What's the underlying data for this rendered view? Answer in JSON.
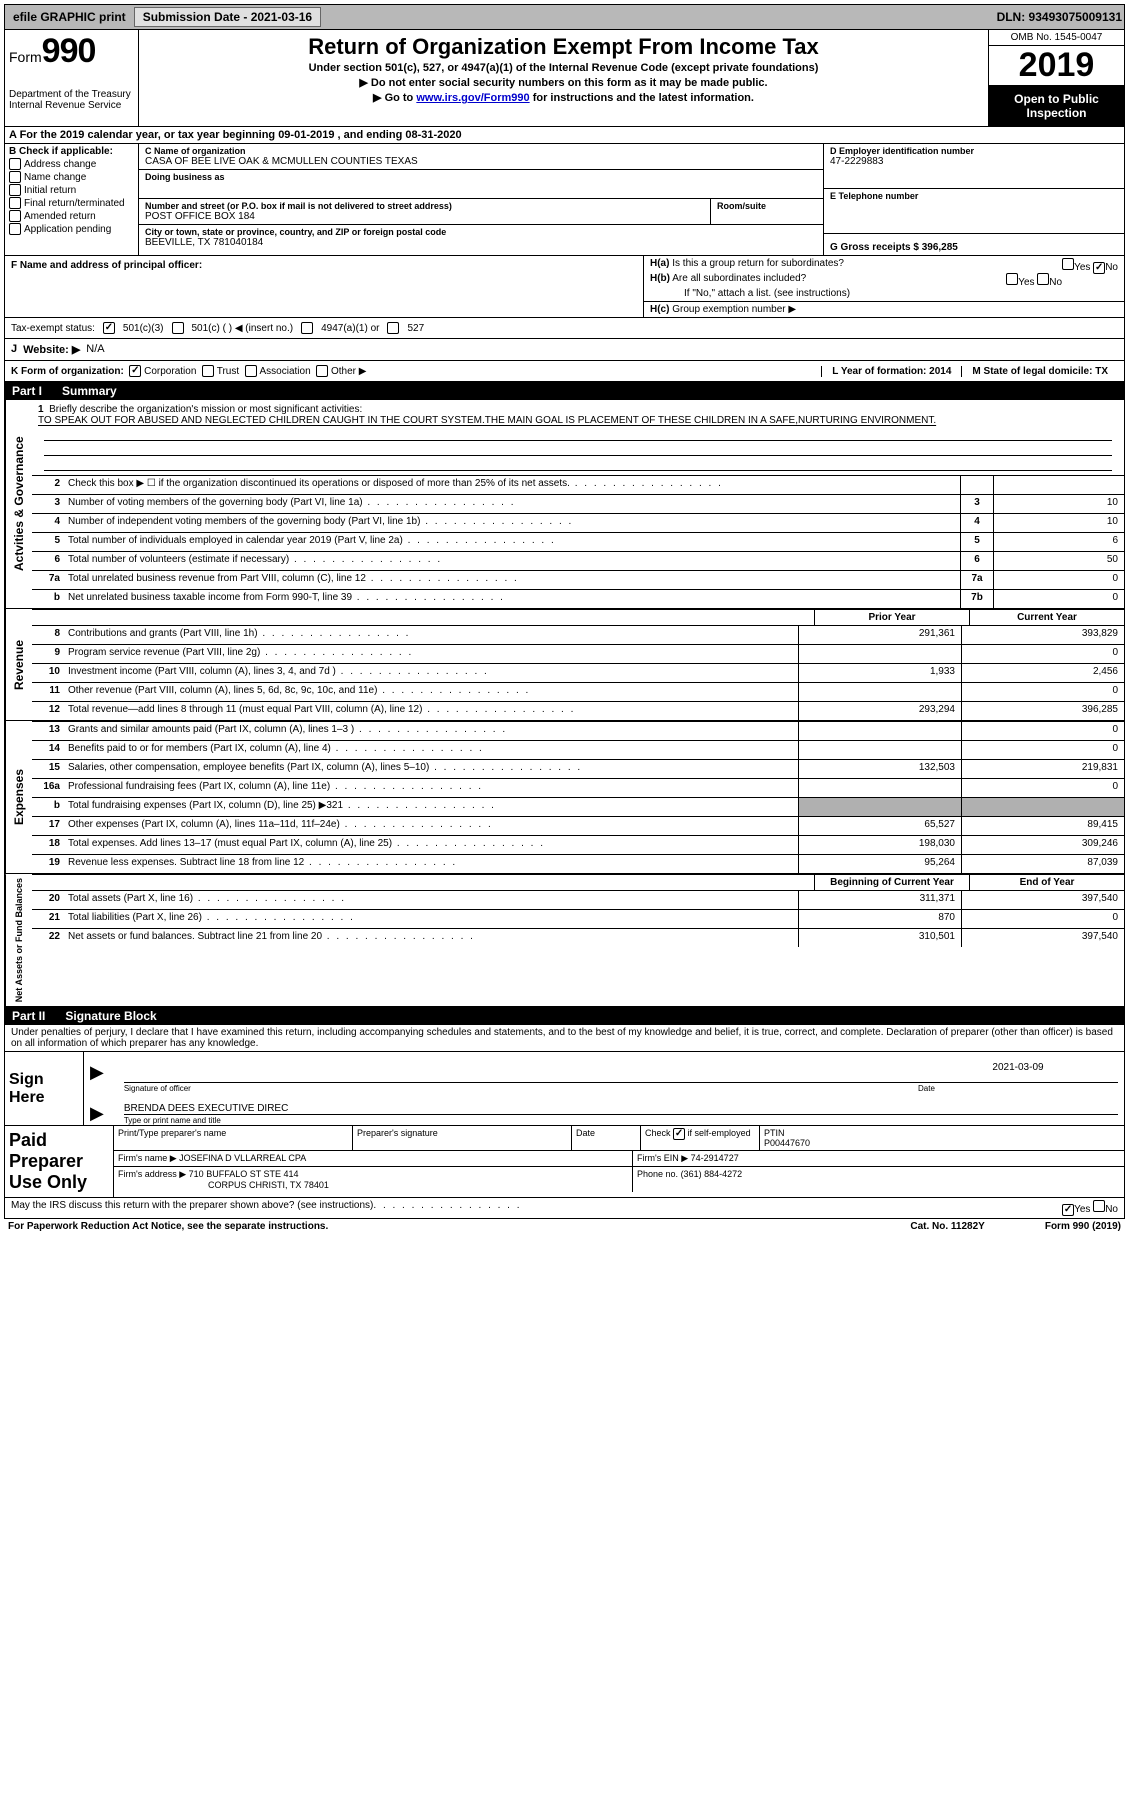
{
  "topbar": {
    "efile": "efile GRAPHIC print",
    "submission_label": "Submission Date - 2021-03-16",
    "dln_label": "DLN: 93493075009131"
  },
  "header": {
    "form_prefix": "Form",
    "form_num": "990",
    "dept": "Department of the Treasury\nInternal Revenue Service",
    "title": "Return of Organization Exempt From Income Tax",
    "sub1": "Under section 501(c), 527, or 4947(a)(1) of the Internal Revenue Code (except private foundations)",
    "sub2": "▶ Do not enter social security numbers on this form as it may be made public.",
    "sub3_prefix": "▶ Go to ",
    "sub3_link": "www.irs.gov/Form990",
    "sub3_suffix": " for instructions and the latest information.",
    "omb": "OMB No. 1545-0047",
    "year": "2019",
    "open": "Open to Public Inspection"
  },
  "row_a": "A For the 2019 calendar year, or tax year beginning 09-01-2019    , and ending 08-31-2020",
  "section_b": {
    "b_label": "B Check if applicable:",
    "opts": [
      "Address change",
      "Name change",
      "Initial return",
      "Final return/terminated",
      "Amended return",
      "Application pending"
    ],
    "c_label": "C Name of organization",
    "c_val": "CASA OF BEE LIVE OAK & MCMULLEN COUNTIES TEXAS",
    "dba_label": "Doing business as",
    "addr_label": "Number and street (or P.O. box if mail is not delivered to street address)",
    "room_label": "Room/suite",
    "addr_val": "POST OFFICE BOX 184",
    "city_label": "City or town, state or province, country, and ZIP or foreign postal code",
    "city_val": "BEEVILLE, TX  781040184",
    "d_label": "D Employer identification number",
    "d_val": "47-2229883",
    "e_label": "E Telephone number",
    "g_label": "G Gross receipts $ 396,285",
    "f_label": "F  Name and address of principal officer:",
    "ha_label": "H(a)",
    "ha_text": "Is this a group return for subordinates?",
    "hb_label": "H(b)",
    "hb_text": "Are all subordinates included?",
    "h_note": "If \"No,\" attach a list. (see instructions)",
    "hc_label": "H(c)",
    "hc_text": "Group exemption number ▶",
    "yes": "Yes",
    "no": "No"
  },
  "tax_status": {
    "label": "Tax-exempt status:",
    "o1": "501(c)(3)",
    "o2": "501(c) (  ) ◀ (insert no.)",
    "o3": "4947(a)(1) or",
    "o4": "527"
  },
  "row_j": {
    "label": "J",
    "text": "Website: ▶",
    "val": "N/A"
  },
  "row_k": {
    "label": "K Form of organization:",
    "o1": "Corporation",
    "o2": "Trust",
    "o3": "Association",
    "o4": "Other ▶",
    "l_label": "L Year of formation: 2014",
    "m_label": "M State of legal domicile: TX"
  },
  "part1": {
    "num": "Part I",
    "title": "Summary"
  },
  "mission": {
    "num": "1",
    "label": "Briefly describe the organization's mission or most significant activities:",
    "text": "TO SPEAK OUT FOR ABUSED AND NEGLECTED CHILDREN CAUGHT IN THE COURT SYSTEM.THE MAIN GOAL IS PLACEMENT OF THESE CHILDREN IN A SAFE,NURTURING ENVIRONMENT."
  },
  "activities": {
    "vert": "Actvities & Governance",
    "rows": [
      {
        "n": "2",
        "d": "Check this box ▶ ☐  if the organization discontinued its operations or disposed of more than 25% of its net assets.",
        "box": "",
        "v": ""
      },
      {
        "n": "3",
        "d": "Number of voting members of the governing body (Part VI, line 1a)",
        "box": "3",
        "v": "10"
      },
      {
        "n": "4",
        "d": "Number of independent voting members of the governing body (Part VI, line 1b)",
        "box": "4",
        "v": "10"
      },
      {
        "n": "5",
        "d": "Total number of individuals employed in calendar year 2019 (Part V, line 2a)",
        "box": "5",
        "v": "6"
      },
      {
        "n": "6",
        "d": "Total number of volunteers (estimate if necessary)",
        "box": "6",
        "v": "50"
      },
      {
        "n": "7a",
        "d": "Total unrelated business revenue from Part VIII, column (C), line 12",
        "box": "7a",
        "v": "0"
      },
      {
        "n": "b",
        "d": "Net unrelated business taxable income from Form 990-T, line 39",
        "box": "7b",
        "v": "0"
      }
    ]
  },
  "revenue": {
    "vert": "Revenue",
    "prior_hdr": "Prior Year",
    "curr_hdr": "Current Year",
    "rows": [
      {
        "n": "8",
        "d": "Contributions and grants (Part VIII, line 1h)",
        "p": "291,361",
        "c": "393,829"
      },
      {
        "n": "9",
        "d": "Program service revenue (Part VIII, line 2g)",
        "p": "",
        "c": "0"
      },
      {
        "n": "10",
        "d": "Investment income (Part VIII, column (A), lines 3, 4, and 7d )",
        "p": "1,933",
        "c": "2,456"
      },
      {
        "n": "11",
        "d": "Other revenue (Part VIII, column (A), lines 5, 6d, 8c, 9c, 10c, and 11e)",
        "p": "",
        "c": "0"
      },
      {
        "n": "12",
        "d": "Total revenue—add lines 8 through 11 (must equal Part VIII, column (A), line 12)",
        "p": "293,294",
        "c": "396,285"
      }
    ]
  },
  "expenses": {
    "vert": "Expenses",
    "rows": [
      {
        "n": "13",
        "d": "Grants and similar amounts paid (Part IX, column (A), lines 1–3 )",
        "p": "",
        "c": "0"
      },
      {
        "n": "14",
        "d": "Benefits paid to or for members (Part IX, column (A), line 4)",
        "p": "",
        "c": "0"
      },
      {
        "n": "15",
        "d": "Salaries, other compensation, employee benefits (Part IX, column (A), lines 5–10)",
        "p": "132,503",
        "c": "219,831"
      },
      {
        "n": "16a",
        "d": "Professional fundraising fees (Part IX, column (A), line 11e)",
        "p": "",
        "c": "0"
      },
      {
        "n": "b",
        "d": "Total fundraising expenses (Part IX, column (D), line 25) ▶321",
        "p": "grey",
        "c": "grey"
      },
      {
        "n": "17",
        "d": "Other expenses (Part IX, column (A), lines 11a–11d, 11f–24e)",
        "p": "65,527",
        "c": "89,415"
      },
      {
        "n": "18",
        "d": "Total expenses. Add lines 13–17 (must equal Part IX, column (A), line 25)",
        "p": "198,030",
        "c": "309,246"
      },
      {
        "n": "19",
        "d": "Revenue less expenses. Subtract line 18 from line 12",
        "p": "95,264",
        "c": "87,039"
      }
    ]
  },
  "netassets": {
    "vert": "Net Assets or Fund Balances",
    "begin_hdr": "Beginning of Current Year",
    "end_hdr": "End of Year",
    "rows": [
      {
        "n": "20",
        "d": "Total assets (Part X, line 16)",
        "p": "311,371",
        "c": "397,540"
      },
      {
        "n": "21",
        "d": "Total liabilities (Part X, line 26)",
        "p": "870",
        "c": "0"
      },
      {
        "n": "22",
        "d": "Net assets or fund balances. Subtract line 21 from line 20",
        "p": "310,501",
        "c": "397,540"
      }
    ]
  },
  "part2": {
    "num": "Part II",
    "title": "Signature Block"
  },
  "sig": {
    "para": "Under penalties of perjury, I declare that I have examined this return, including accompanying schedules and statements, and to the best of my knowledge and belief, it is true, correct, and complete. Declaration of preparer (other than officer) is based on all information of which preparer has any knowledge.",
    "here": "Sign Here",
    "sig_label": "Signature of officer",
    "date_label": "Date",
    "date_val": "2021-03-09",
    "name": "BRENDA DEES EXECUTIVE DIREC",
    "name_label": "Type or print name and title",
    "paid": "Paid Preparer Use Only",
    "print_label": "Print/Type preparer's name",
    "prep_sig_label": "Preparer's signature",
    "check_label": "Check",
    "check_suffix": "if self-employed",
    "ptin_label": "PTIN",
    "ptin": "P00447670",
    "firm_name_label": "Firm's name    ▶",
    "firm_name": "JOSEFINA D VLLARREAL CPA",
    "firm_ein_label": "Firm's EIN ▶",
    "firm_ein": "74-2914727",
    "firm_addr_label": "Firm's address ▶",
    "firm_addr1": "710 BUFFALO ST STE 414",
    "firm_addr2": "CORPUS CHRISTI, TX  78401",
    "phone_label": "Phone no.",
    "phone": "(361) 884-4272",
    "discuss": "May the IRS discuss this return with the preparer shown above? (see instructions)"
  },
  "footer": {
    "left": "For Paperwork Reduction Act Notice, see the separate instructions.",
    "mid": "Cat. No. 11282Y",
    "right": "Form 990 (2019)"
  }
}
